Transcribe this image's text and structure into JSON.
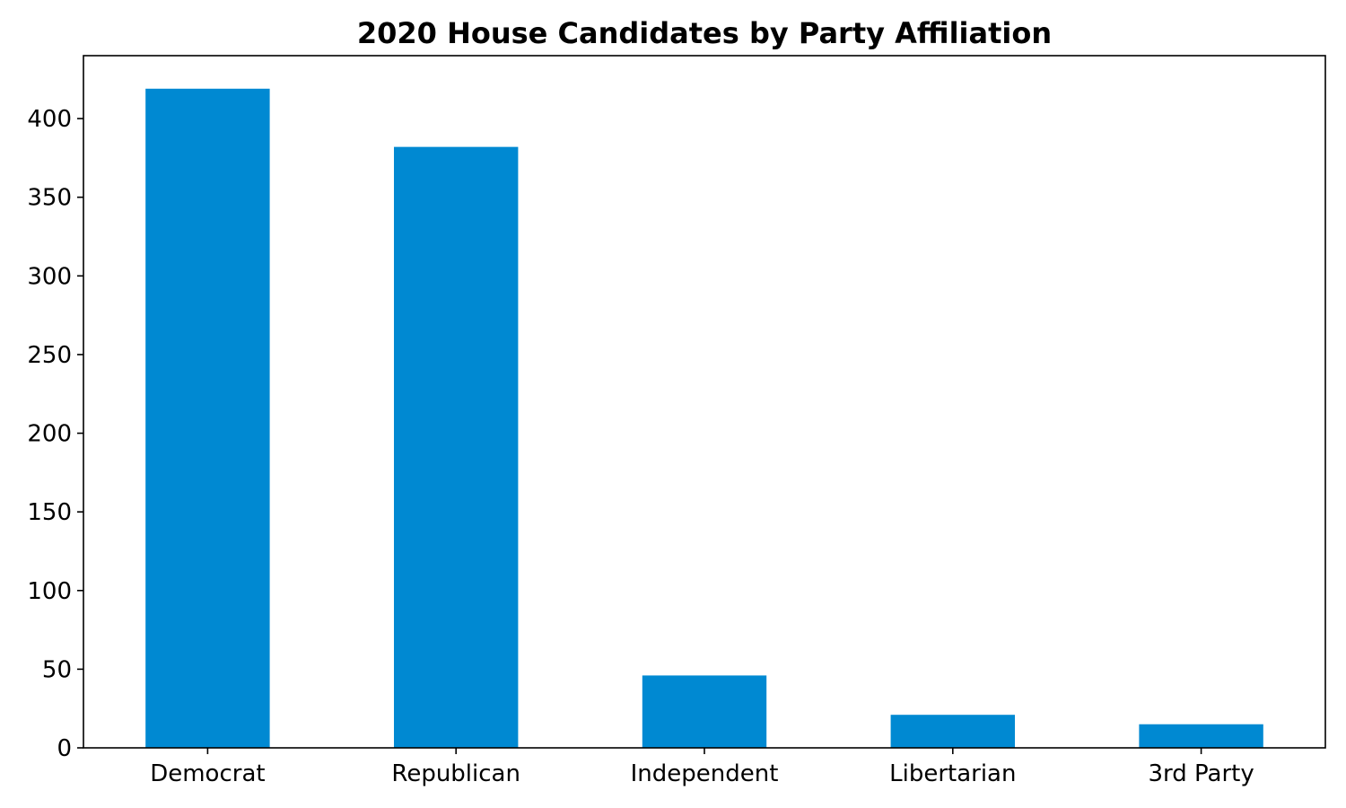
{
  "chart_data": {
    "type": "bar",
    "title": "2020 House Candidates by Party Affiliation",
    "xlabel": "",
    "ylabel": "",
    "categories": [
      "Democrat",
      "Republican",
      "Independent",
      "Libertarian",
      "3rd Party"
    ],
    "values": [
      419,
      382,
      46,
      21,
      15
    ],
    "ylim": [
      0,
      440
    ],
    "yticks": [
      0,
      50,
      100,
      150,
      200,
      250,
      300,
      350,
      400
    ],
    "ytick_labels": [
      "0",
      "50",
      "100",
      "150",
      "200",
      "250",
      "300",
      "350",
      "400"
    ],
    "bar_color": "#0089d2",
    "grid": false,
    "legend": "none"
  }
}
